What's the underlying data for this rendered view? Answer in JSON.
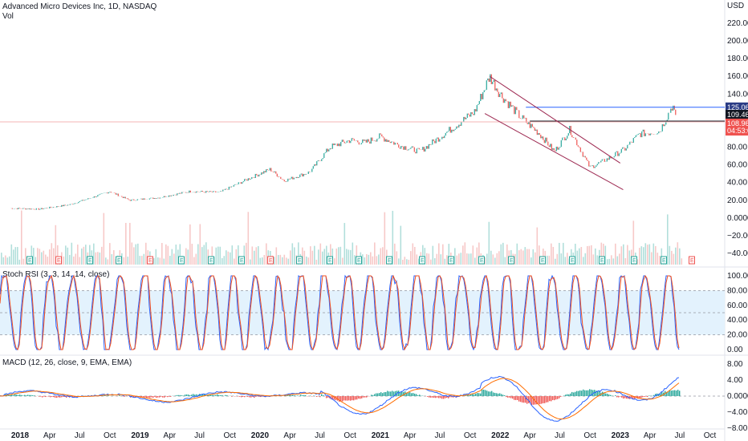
{
  "header": {
    "symbol_title": "Advanced Micro Devices Inc, 1D, NASDAQ",
    "vol_label": "Vol",
    "currency": "USD"
  },
  "colors": {
    "up": "#26a69a",
    "down": "#ef5350",
    "price_line": "#ef5350",
    "resistance": "#2962ff",
    "support": "#131722",
    "channel": "#9c2750",
    "rsi_k": "#2962ff",
    "rsi_d": "#f4511e",
    "rsi_band": "#e3f2fd",
    "macd": "#2962ff",
    "signal": "#ff6d00",
    "tag_blue": "#2a3b85",
    "tag_dark": "#131722",
    "tag_red": "#ef5350"
  },
  "price_axis": {
    "ticks": [
      "220.00",
      "200.00",
      "180.00",
      "160.00",
      "140.00",
      "120.00",
      "100.00",
      "80.00",
      "60.00",
      "40.00",
      "20.00",
      "0.0000",
      "−20.00",
      "−40.00"
    ]
  },
  "price_tags": {
    "resistance": "125.06",
    "support": "109.46",
    "last": "108.96",
    "countdown": "04:53:01"
  },
  "rsi": {
    "title": "Stoch RSI (3, 3, 14, 14, close)",
    "ticks": [
      "100.00",
      "80.00",
      "60.00",
      "40.00",
      "20.00",
      "0.00"
    ]
  },
  "macd": {
    "title": "MACD (12, 26, close, 9, EMA, EMA)",
    "ticks": [
      "8.00",
      "4.00",
      "0.0000",
      "−4.00",
      "−8.00"
    ]
  },
  "time_axis": {
    "labels": [
      "2018",
      "Apr",
      "Jul",
      "Oct",
      "2019",
      "Apr",
      "Jul",
      "Oct",
      "2020",
      "Apr",
      "Jul",
      "Oct",
      "2021",
      "Apr",
      "Jul",
      "Oct",
      "2022",
      "Apr",
      "Jul",
      "Oct",
      "2023",
      "Apr",
      "Jul",
      "Oct"
    ]
  },
  "event_markers": [
    "E",
    "E",
    "E",
    "E",
    "E",
    "E",
    "E",
    "E",
    "E",
    "E",
    "E",
    "E",
    "E",
    "E",
    "E",
    "E",
    "E",
    "E",
    "E",
    "E",
    "E",
    "E",
    "E"
  ],
  "chart_data": {
    "type": "line",
    "title": "Advanced Micro Devices Inc, 1D, NASDAQ",
    "price_series": {
      "name": "AMD",
      "x": [
        "2017-12-01",
        "2018-03-01",
        "2018-06-01",
        "2018-09-01",
        "2018-10-01",
        "2018-12-01",
        "2019-03-01",
        "2019-06-01",
        "2019-09-01",
        "2019-12-01",
        "2020-02-01",
        "2020-03-15",
        "2020-06-01",
        "2020-08-01",
        "2020-10-01",
        "2020-11-15",
        "2021-01-01",
        "2021-03-01",
        "2021-05-01",
        "2021-07-15",
        "2021-09-01",
        "2021-10-15",
        "2021-11-30",
        "2022-01-01",
        "2022-03-01",
        "2022-05-01",
        "2022-06-15",
        "2022-08-01",
        "2022-10-01",
        "2022-12-01",
        "2023-01-15",
        "2023-03-01",
        "2023-05-01",
        "2023-06-10",
        "2023-06-20"
      ],
      "y": [
        11,
        10,
        15,
        26,
        30,
        20,
        23,
        30,
        29,
        45,
        55,
        42,
        52,
        80,
        88,
        85,
        92,
        82,
        75,
        95,
        108,
        120,
        160,
        140,
        115,
        95,
        75,
        100,
        57,
        68,
        78,
        95,
        98,
        128,
        109
      ]
    },
    "drawings": {
      "resistance_level": 125.06,
      "support_level": 109.46,
      "channel_upper": {
        "x": [
          "2021-11-30",
          "2023-01-01"
        ],
        "y": [
          160,
          62
        ]
      },
      "channel_lower": {
        "x": [
          "2021-11-15",
          "2023-01-10"
        ],
        "y": [
          118,
          32
        ]
      }
    },
    "ylim": [
      -45,
      230
    ],
    "stoch_rsi": {
      "ylim": [
        0,
        100
      ],
      "bands": [
        20,
        80
      ]
    },
    "macd": {
      "ylim": [
        -8,
        8
      ]
    },
    "grid": false
  }
}
